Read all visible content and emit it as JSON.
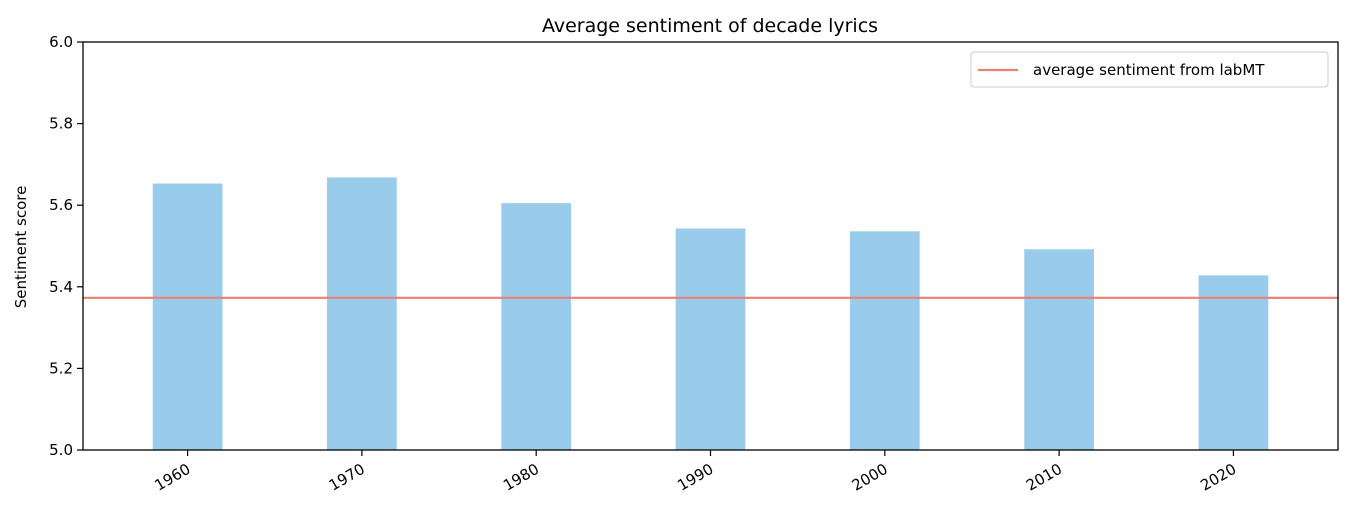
{
  "chart_data": {
    "type": "bar",
    "title": "Average sentiment of decade lyrics",
    "xlabel": "",
    "ylabel": "Sentiment score",
    "categories": [
      "1960",
      "1970",
      "1980",
      "1990",
      "2000",
      "2010",
      "2020"
    ],
    "values": [
      5.653,
      5.668,
      5.605,
      5.543,
      5.536,
      5.492,
      5.428
    ],
    "ylim": [
      5.0,
      6.0
    ],
    "yticks": [
      "5.0",
      "5.2",
      "5.4",
      "5.6",
      "5.8",
      "6.0"
    ],
    "reference_line": {
      "label": "average sentiment from labMT",
      "value": 5.373
    },
    "legend": {
      "position": "top-right"
    },
    "grid": false,
    "colors": {
      "bar": "#99cbeb",
      "reference_line": "#ea8074",
      "axis": "#000000"
    }
  }
}
